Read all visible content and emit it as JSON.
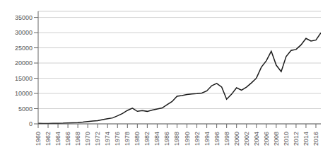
{
  "chart_data": {
    "type": "line",
    "x": [
      1960,
      1961,
      1962,
      1963,
      1964,
      1965,
      1966,
      1967,
      1968,
      1969,
      1970,
      1971,
      1972,
      1973,
      1974,
      1975,
      1976,
      1977,
      1978,
      1979,
      1980,
      1981,
      1982,
      1983,
      1984,
      1985,
      1986,
      1987,
      1988,
      1989,
      1990,
      1991,
      1992,
      1993,
      1994,
      1995,
      1996,
      1997,
      1998,
      1999,
      2000,
      2001,
      2002,
      2003,
      2004,
      2005,
      2006,
      2007,
      2008,
      2009,
      2010,
      2011,
      2012,
      2013,
      2014,
      2015,
      2016,
      2017
    ],
    "values": [
      158,
      94,
      110,
      149,
      186,
      212,
      286,
      346,
      427,
      565,
      744,
      905,
      1042,
      1394,
      1689,
      1951,
      2640,
      3390,
      4428,
      5148,
      4115,
      4355,
      4104,
      4537,
      4866,
      5222,
      6307,
      7347,
      9083,
      9329,
      9657,
      9847,
      9950,
      10111,
      10840,
      12565,
      13292,
      12107,
      8088,
      9744,
      11865,
      11098,
      12094,
      13460,
      15029,
      18658,
      20740,
      23883,
      19296,
      17175,
      22151,
      24156,
      24454,
      25975,
      28101,
      27221,
      27539,
      29891
    ],
    "color": "#1a1a1a",
    "xlim": [
      1960,
      2017
    ],
    "xticks": [
      1960,
      1962,
      1964,
      1966,
      1968,
      1970,
      1972,
      1974,
      1976,
      1978,
      1980,
      1982,
      1984,
      1986,
      1988,
      1990,
      1992,
      1994,
      1996,
      1998,
      2000,
      2002,
      2004,
      2006,
      2008,
      2010,
      2012,
      2014,
      2016
    ],
    "ylim": [
      0,
      37000
    ],
    "yticks": [
      0,
      5000,
      10000,
      15000,
      20000,
      25000,
      30000,
      35000
    ],
    "grid": true
  }
}
